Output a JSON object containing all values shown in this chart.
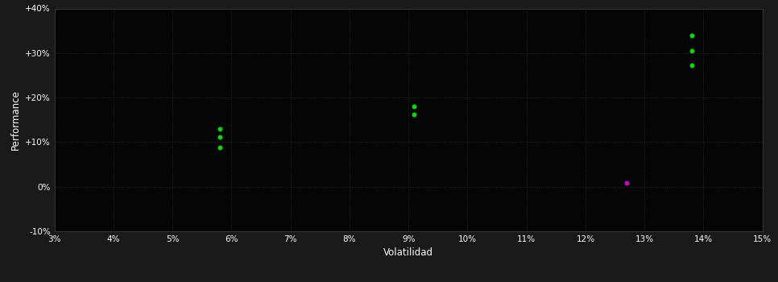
{
  "background_color": "#1a1a1a",
  "plot_bg_color": "#050505",
  "grid_color": "#1e3a1e",
  "xlabel": "Volatilidad",
  "ylabel": "Performance",
  "xlim": [
    0.03,
    0.15
  ],
  "ylim": [
    -0.1,
    0.4
  ],
  "xticks": [
    0.03,
    0.04,
    0.05,
    0.06,
    0.07,
    0.08,
    0.09,
    0.1,
    0.11,
    0.12,
    0.13,
    0.14,
    0.15
  ],
  "yticks": [
    -0.1,
    0.0,
    0.1,
    0.2,
    0.3,
    0.4
  ],
  "ytick_labels": [
    "-10%",
    "0%",
    "+10%",
    "+20%",
    "+30%",
    "+40%"
  ],
  "xtick_labels": [
    "3%",
    "4%",
    "5%",
    "6%",
    "7%",
    "8%",
    "9%",
    "10%",
    "11%",
    "12%",
    "13%",
    "14%",
    "15%"
  ],
  "green_points": [
    [
      0.058,
      0.13
    ],
    [
      0.058,
      0.112
    ],
    [
      0.058,
      0.088
    ],
    [
      0.091,
      0.18
    ],
    [
      0.091,
      0.163
    ],
    [
      0.138,
      0.34
    ],
    [
      0.138,
      0.305
    ],
    [
      0.138,
      0.273
    ]
  ],
  "magenta_points": [
    [
      0.127,
      0.008
    ]
  ],
  "green_color": "#00dd00",
  "magenta_color": "#cc00cc",
  "dot_size": 18,
  "tick_color": "#ffffff",
  "label_color": "#ffffff",
  "grid_alpha": 1.0,
  "grid_linestyle": ":",
  "grid_linewidth": 0.6,
  "spine_color": "#444444"
}
